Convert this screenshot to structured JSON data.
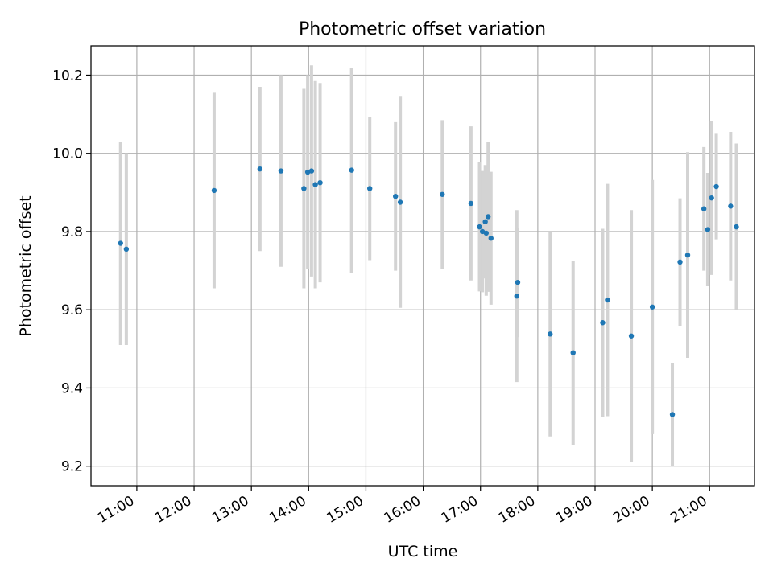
{
  "chart_data": {
    "type": "scatter",
    "title": "Photometric offset variation",
    "xlabel": "UTC time",
    "ylabel": "Photometric offset",
    "x_tick_labels": [
      "11:00",
      "12:00",
      "13:00",
      "14:00",
      "15:00",
      "16:00",
      "17:00",
      "18:00",
      "19:00",
      "20:00",
      "21:00"
    ],
    "x_tick_values": [
      "11:00",
      "12:00",
      "13:00",
      "14:00",
      "15:00",
      "16:00",
      "17:00",
      "18:00",
      "19:00",
      "20:00",
      "21:00"
    ],
    "y_tick_labels": [
      "9.2",
      "9.4",
      "9.6",
      "9.8",
      "10.0",
      "10.2"
    ],
    "y_tick_values": [
      9.2,
      9.4,
      9.6,
      9.8,
      10.0,
      10.2
    ],
    "xlim": [
      "10:12",
      "21:47"
    ],
    "ylim": [
      9.15,
      10.275
    ],
    "grid": true,
    "colors": {
      "point": "#1f77b4",
      "errorbar": "#d3d3d3",
      "grid": "#b0b0b0"
    },
    "points": [
      {
        "t": "10:43",
        "y": 9.77,
        "err": 0.26
      },
      {
        "t": "10:49",
        "y": 9.755,
        "err": 0.245
      },
      {
        "t": "12:21",
        "y": 9.905,
        "err": 0.25
      },
      {
        "t": "13:09",
        "y": 9.96,
        "err": 0.21
      },
      {
        "t": "13:31",
        "y": 9.955,
        "err": 0.245
      },
      {
        "t": "13:55",
        "y": 9.91,
        "err": 0.255
      },
      {
        "t": "13:59",
        "y": 9.952,
        "err": 0.248
      },
      {
        "t": "14:03",
        "y": 9.955,
        "err": 0.27
      },
      {
        "t": "14:07",
        "y": 9.92,
        "err": 0.265
      },
      {
        "t": "14:12",
        "y": 9.925,
        "err": 0.255
      },
      {
        "t": "14:45",
        "y": 9.957,
        "err": 0.262
      },
      {
        "t": "15:04",
        "y": 9.91,
        "err": 0.183
      },
      {
        "t": "15:31",
        "y": 9.89,
        "err": 0.19
      },
      {
        "t": "15:36",
        "y": 9.875,
        "err": 0.27
      },
      {
        "t": "16:20",
        "y": 9.895,
        "err": 0.19
      },
      {
        "t": "16:50",
        "y": 9.872,
        "err": 0.197
      },
      {
        "t": "16:59",
        "y": 9.812,
        "err": 0.165
      },
      {
        "t": "17:02",
        "y": 9.8,
        "err": 0.155
      },
      {
        "t": "17:05",
        "y": 9.825,
        "err": 0.145
      },
      {
        "t": "17:06",
        "y": 9.796,
        "err": 0.16
      },
      {
        "t": "17:08",
        "y": 9.838,
        "err": 0.192
      },
      {
        "t": "17:11",
        "y": 9.783,
        "err": 0.17
      },
      {
        "t": "17:38",
        "y": 9.635,
        "err": 0.22
      },
      {
        "t": "17:39",
        "y": 9.67,
        "err": 0.14
      },
      {
        "t": "18:13",
        "y": 9.538,
        "err": 0.262
      },
      {
        "t": "18:37",
        "y": 9.49,
        "err": 0.235
      },
      {
        "t": "19:08",
        "y": 9.567,
        "err": 0.24
      },
      {
        "t": "19:13",
        "y": 9.625,
        "err": 0.297
      },
      {
        "t": "19:38",
        "y": 9.533,
        "err": 0.322
      },
      {
        "t": "20:00",
        "y": 9.607,
        "err": 0.325
      },
      {
        "t": "20:21",
        "y": 9.332,
        "err": 0.132
      },
      {
        "t": "20:29",
        "y": 9.722,
        "err": 0.163
      },
      {
        "t": "20:37",
        "y": 9.74,
        "err": 0.263
      },
      {
        "t": "20:54",
        "y": 9.858,
        "err": 0.158
      },
      {
        "t": "20:58",
        "y": 9.805,
        "err": 0.145
      },
      {
        "t": "21:02",
        "y": 9.886,
        "err": 0.197
      },
      {
        "t": "21:07",
        "y": 9.915,
        "err": 0.135
      },
      {
        "t": "21:22",
        "y": 9.865,
        "err": 0.19
      },
      {
        "t": "21:28",
        "y": 9.812,
        "err": 0.213
      }
    ]
  }
}
